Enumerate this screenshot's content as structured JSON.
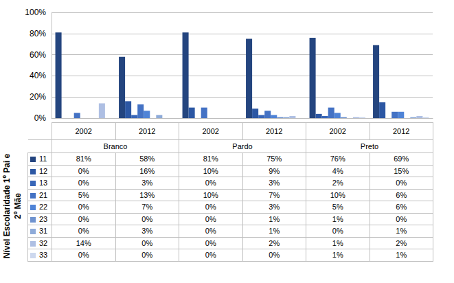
{
  "chart_data": {
    "type": "bar",
    "y_label": "Nível Escolaridade 1º Pai e 2º Mãe",
    "categories": [
      "2002",
      "2012",
      "2002",
      "2012",
      "2002",
      "2012"
    ],
    "category_groups": [
      "Branco",
      "Pardo",
      "Preto"
    ],
    "ylim": [
      0,
      100
    ],
    "yticks": [
      {
        "value": 0,
        "label": "0%"
      },
      {
        "value": 20,
        "label": "20%"
      },
      {
        "value": 40,
        "label": "40%"
      },
      {
        "value": 60,
        "label": "60%"
      },
      {
        "value": 80,
        "label": "80%"
      },
      {
        "value": 100,
        "label": "100%"
      }
    ],
    "grid": true,
    "series": [
      {
        "name": "11",
        "color": "#24457f",
        "values": [
          81,
          58,
          81,
          75,
          76,
          69
        ],
        "value_labels": [
          "81%",
          "58%",
          "81%",
          "75%",
          "76%",
          "69%"
        ]
      },
      {
        "name": "12",
        "color": "#2c57a3",
        "values": [
          0,
          16,
          10,
          9,
          4,
          15
        ],
        "value_labels": [
          "0%",
          "16%",
          "10%",
          "9%",
          "4%",
          "15%"
        ]
      },
      {
        "name": "13",
        "color": "#3866b8",
        "values": [
          0,
          3,
          0,
          3,
          2,
          0
        ],
        "value_labels": [
          "0%",
          "3%",
          "0%",
          "3%",
          "2%",
          "0%"
        ]
      },
      {
        "name": "21",
        "color": "#4472c4",
        "values": [
          5,
          13,
          10,
          7,
          10,
          6
        ],
        "value_labels": [
          "5%",
          "13%",
          "10%",
          "7%",
          "10%",
          "6%"
        ]
      },
      {
        "name": "22",
        "color": "#4f83d6",
        "values": [
          0,
          7,
          0,
          3,
          5,
          6
        ],
        "value_labels": [
          "0%",
          "7%",
          "0%",
          "3%",
          "5%",
          "6%"
        ]
      },
      {
        "name": "23",
        "color": "#6f93cf",
        "values": [
          0,
          0,
          0,
          1,
          1,
          0
        ],
        "value_labels": [
          "0%",
          "0%",
          "0%",
          "1%",
          "1%",
          "0%"
        ]
      },
      {
        "name": "31",
        "color": "#8eabd9",
        "values": [
          0,
          3,
          0,
          1,
          0,
          1
        ],
        "value_labels": [
          "0%",
          "3%",
          "0%",
          "1%",
          "0%",
          "1%"
        ]
      },
      {
        "name": "32",
        "color": "#aebfe3",
        "values": [
          14,
          0,
          0,
          2,
          1,
          2
        ],
        "value_labels": [
          "14%",
          "0%",
          "0%",
          "2%",
          "1%",
          "2%"
        ]
      },
      {
        "name": "33",
        "color": "#cdd8ee",
        "values": [
          0,
          0,
          0,
          0,
          1,
          1
        ],
        "value_labels": [
          "0%",
          "0%",
          "0%",
          "0%",
          "1%",
          "1%"
        ]
      }
    ]
  }
}
